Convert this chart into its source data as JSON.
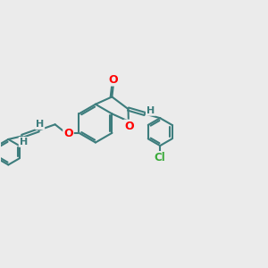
{
  "background_color": "#ebebeb",
  "bond_color": "#3d7d7d",
  "bond_width": 1.5,
  "atom_colors": {
    "O": "#ff0000",
    "Cl": "#3aaa3a",
    "H": "#3d7d7d",
    "C": "#3d7d7d"
  },
  "xlim": [
    -1.5,
    8.5
  ],
  "ylim": [
    -2.5,
    4.0
  ]
}
